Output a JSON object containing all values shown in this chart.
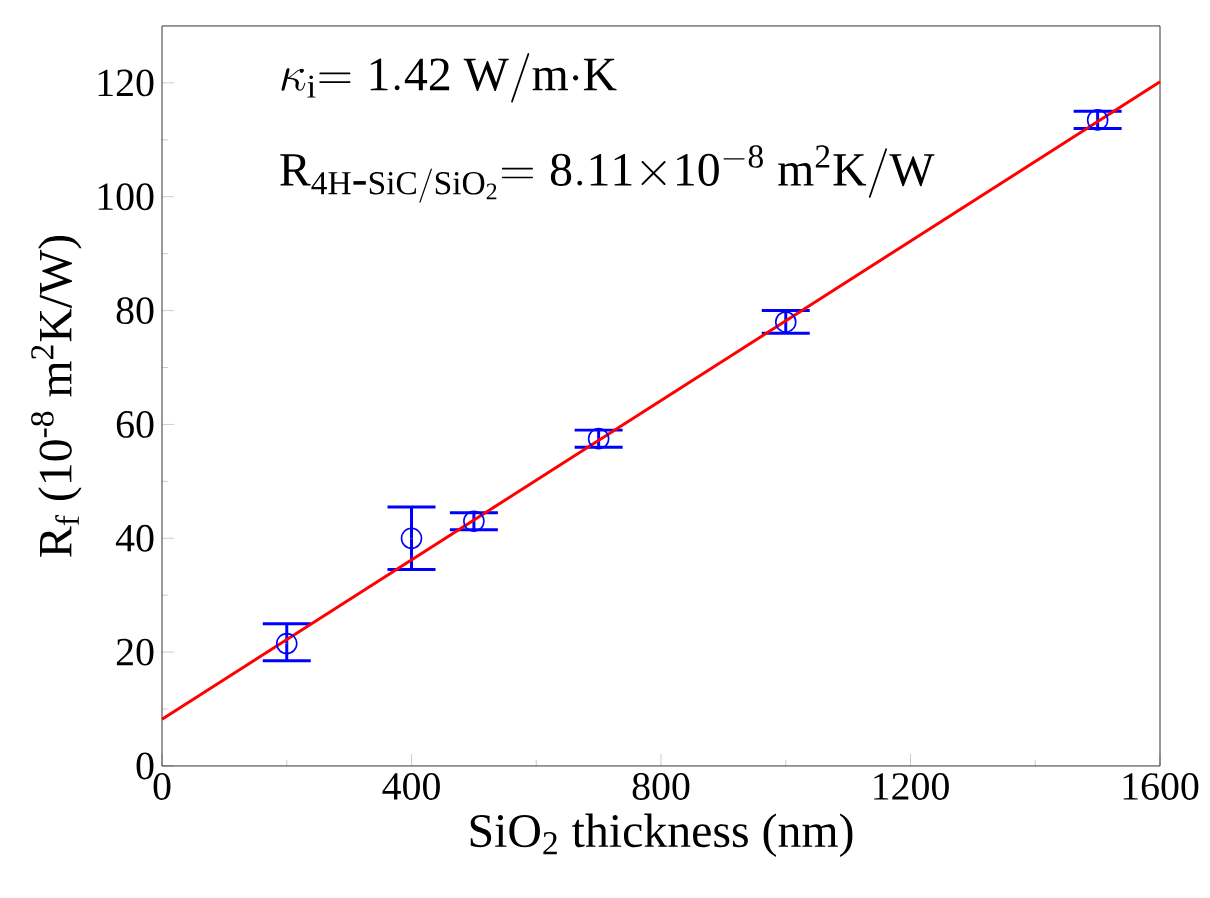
{
  "chart_data": {
    "type": "scatter",
    "xlabel": "SiO$_{2}$ thickness (nm)",
    "ylabel": "R$_{f}$ (10$^{-8}$ m$^{2}$K/W)",
    "annotations": [
      "\\kappa_{\\mathrm{i}}\\mathrm{=1.42\\ W/m{\\cdot}K}",
      "\\mathrm{R}_{\\mathrm{4H\\mbox{-}SiC/SiO_{2}}}\\mathrm{=8.11{\\times}10^{-8}\\ m^{2}K/W}"
    ],
    "xlim": [
      0,
      1600
    ],
    "xticks": [
      0,
      400,
      800,
      1200,
      1600
    ],
    "ylim": [
      0,
      130
    ],
    "yticks": [
      0,
      20,
      40,
      60,
      80,
      100,
      120
    ],
    "grid": false,
    "marker": "circle",
    "series": [
      {
        "color": "#0000ff",
        "x": [
          200,
          400,
          500,
          700,
          1000,
          1500
        ],
        "values": [
          21.5,
          40,
          43,
          57.5,
          78,
          113.5
        ],
        "errors": [
          [
            18.5,
            25
          ],
          [
            34.5,
            45.5
          ],
          [
            41.5,
            44.5
          ],
          [
            56,
            59
          ],
          [
            76,
            80
          ],
          [
            112,
            115
          ]
        ]
      },
      {
        "type": "line",
        "color": "#ff0000",
        "x": [
          0,
          1600
        ],
        "values": [
          8.2,
          120.2
        ],
        "line_style": "solid",
        "marker": "none"
      }
    ]
  }
}
